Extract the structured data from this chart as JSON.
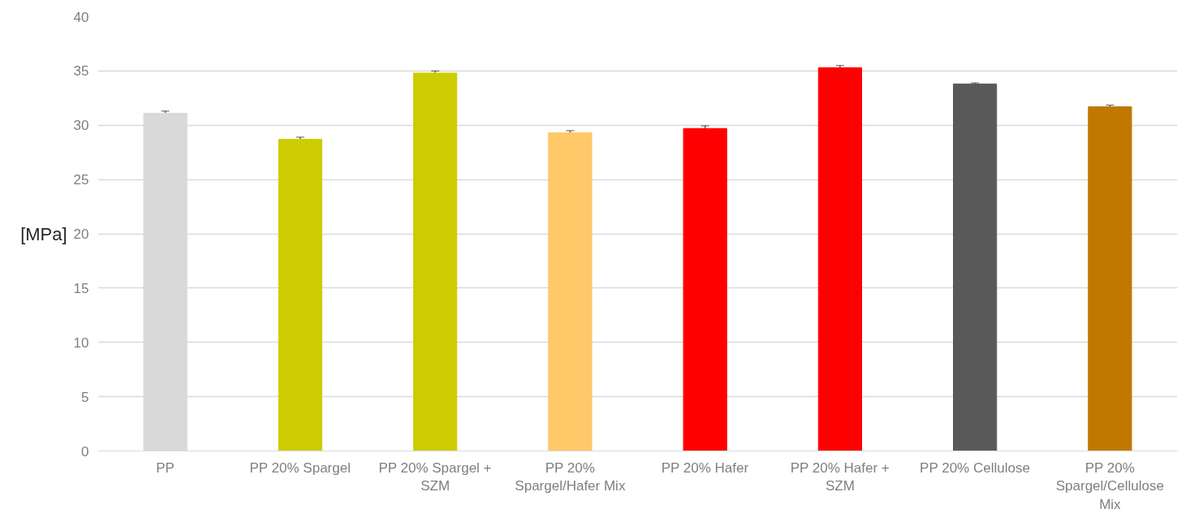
{
  "chart_data": {
    "type": "bar",
    "ylabel": "[MPa]",
    "categories": [
      "PP",
      "PP 20% Spargel",
      "PP 20% Spargel + SZM",
      "PP 20% Spargel/Hafer Mix",
      "PP 20% Hafer",
      "PP 20% Hafer + SZM",
      "PP 20% Cellulose",
      "PP 20% Spargel/Cellulose Mix"
    ],
    "values": [
      31.1,
      28.7,
      34.8,
      29.3,
      29.7,
      35.3,
      33.8,
      31.7
    ],
    "errors": [
      0.2,
      0.2,
      0.2,
      0.2,
      0.25,
      0.2,
      0.1,
      0.15
    ],
    "colors": [
      "#d9d9d9",
      "#cccc00",
      "#cccc00",
      "#ffc869",
      "#ff0000",
      "#ff0000",
      "#595959",
      "#c07800"
    ],
    "ylim": [
      0,
      40
    ],
    "yticks": [
      0,
      5,
      10,
      15,
      20,
      25,
      30,
      35,
      40
    ],
    "grid": "y"
  }
}
